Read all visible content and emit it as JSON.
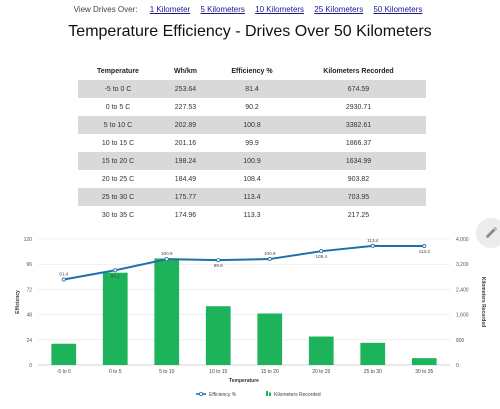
{
  "filters": {
    "label": "View Drives Over:",
    "options": [
      "1 Kilometer",
      "5 Kilometers",
      "10 Kilometers",
      "25 Kilometers",
      "50 Kilometers"
    ]
  },
  "title": "Temperature Efficiency - Drives Over 50 Kilometers",
  "table": {
    "headers": [
      "Temperature",
      "Wh/km",
      "Efficiency %",
      "Kilometers Recorded"
    ],
    "rows": [
      [
        "-5 to 0 C",
        "253.64",
        "81.4",
        "674.59"
      ],
      [
        "0 to 5 C",
        "227.53",
        "90.2",
        "2930.71"
      ],
      [
        "5 to 10 C",
        "202.89",
        "100.8",
        "3382.61"
      ],
      [
        "10 to 15 C",
        "201.16",
        "99.9",
        "1866.37"
      ],
      [
        "15 to 20 C",
        "198.24",
        "100.9",
        "1634.99"
      ],
      [
        "20 to 25 C",
        "184.49",
        "108.4",
        "903.82"
      ],
      [
        "25 to 30 C",
        "175.77",
        "113.4",
        "703.95"
      ],
      [
        "30 to 35 C",
        "174.96",
        "113.3",
        "217.25"
      ]
    ]
  },
  "icons": {
    "edit": "pencil-icon"
  },
  "chart_data": {
    "type": "bar",
    "categories": [
      "-5 to 0",
      "0 to 5",
      "5 to 10",
      "10 to 15",
      "15 to 20",
      "20 to 25",
      "25 to 30",
      "30 to 35"
    ],
    "series": [
      {
        "name": "Efficiency %",
        "kind": "line",
        "axis": "left",
        "color": "#1f6fa8",
        "values": [
          81.4,
          90.2,
          100.8,
          99.9,
          100.9,
          108.4,
          113.4,
          113.3
        ]
      },
      {
        "name": "Kilometers Recorded",
        "kind": "bar",
        "axis": "right",
        "color": "#1db35a",
        "values": [
          674.59,
          2930.71,
          3382.61,
          1866.37,
          1634.99,
          903.82,
          703.95,
          217.25
        ]
      }
    ],
    "xlabel": "Temperature",
    "ylabel_left": "Efficiency",
    "ylabel_right": "Kilometers Recorded",
    "ylim_left": [
      0,
      120
    ],
    "ylim_right": [
      0,
      4000
    ],
    "yticks_left": [
      "0",
      "24",
      "48",
      "72",
      "96",
      "120"
    ],
    "yticks_right": [
      "0",
      "800",
      "1,600",
      "2,400",
      "3,200",
      "4,000"
    ],
    "grid": true,
    "legend_position": "bottom-center"
  }
}
